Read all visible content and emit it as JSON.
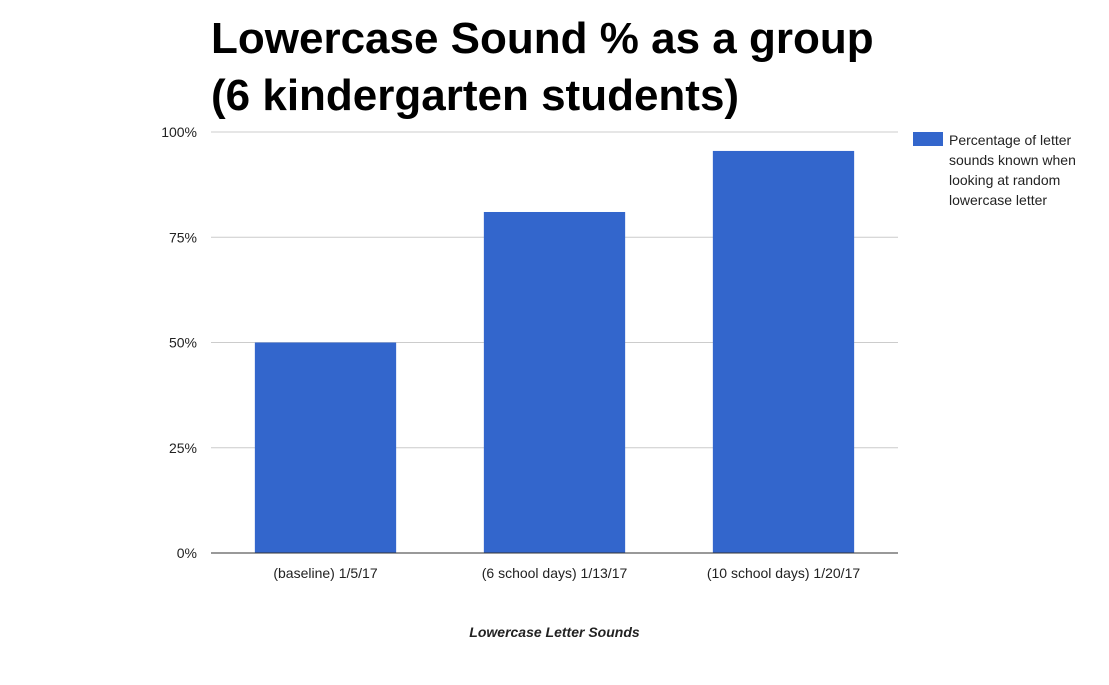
{
  "chart_data": {
    "type": "bar",
    "title_lines": [
      "Lowercase Sound % as a group",
      "(6 kindergarten students)"
    ],
    "xlabel": "Lowercase Letter Sounds",
    "ylabel": "",
    "categories": [
      "(baseline) 1/5/17",
      "(6 school days) 1/13/17",
      "(10 school days) 1/20/17"
    ],
    "series": [
      {
        "name": "Percentage of letter sounds known when looking at random lowercase letter",
        "values": [
          50,
          81,
          95.5
        ],
        "color": "#3366cc"
      }
    ],
    "ylim": [
      0,
      100
    ],
    "yticks": [
      0,
      25,
      50,
      75,
      100
    ],
    "ytick_labels": [
      "0%",
      "25%",
      "50%",
      "75%",
      "100%"
    ],
    "grid": true,
    "legend_position": "right"
  }
}
